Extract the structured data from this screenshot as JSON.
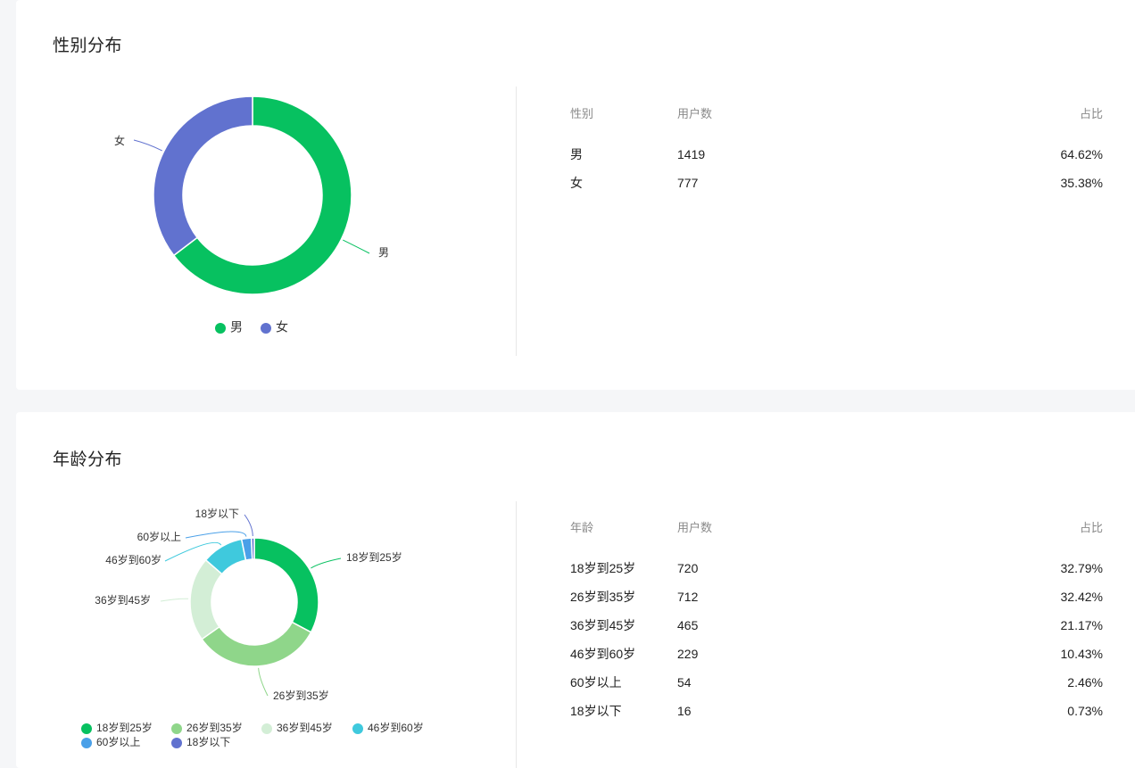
{
  "gender": {
    "title": "性别分布",
    "table": {
      "headers": [
        "性别",
        "用户数",
        "占比"
      ],
      "rows": [
        [
          "男",
          "1419",
          "64.62%"
        ],
        [
          "女",
          "777",
          "35.38%"
        ]
      ]
    }
  },
  "age": {
    "title": "年龄分布",
    "table": {
      "headers": [
        "年龄",
        "用户数",
        "占比"
      ],
      "rows": [
        [
          "18岁到25岁",
          "720",
          "32.79%"
        ],
        [
          "26岁到35岁",
          "712",
          "32.42%"
        ],
        [
          "36岁到45岁",
          "465",
          "21.17%"
        ],
        [
          "46岁到60岁",
          "229",
          "10.43%"
        ],
        [
          "60岁以上",
          "54",
          "2.46%"
        ],
        [
          "18岁以下",
          "16",
          "0.73%"
        ]
      ]
    }
  },
  "chart_data": [
    {
      "type": "pie",
      "title": "性别分布",
      "categories": [
        "男",
        "女"
      ],
      "values": [
        1419,
        777
      ],
      "colors": [
        "#07c160",
        "#6172cf"
      ],
      "legend": "bottom",
      "donut": true
    },
    {
      "type": "pie",
      "title": "年龄分布",
      "categories": [
        "18岁到25岁",
        "26岁到35岁",
        "36岁到45岁",
        "46岁到60岁",
        "60岁以上",
        "18岁以下"
      ],
      "values": [
        720,
        712,
        465,
        229,
        54,
        16
      ],
      "colors": [
        "#07c160",
        "#8fd68a",
        "#d3eed6",
        "#3fc9dd",
        "#4aa0e8",
        "#6172cf"
      ],
      "legend": "bottom",
      "donut": true
    }
  ]
}
